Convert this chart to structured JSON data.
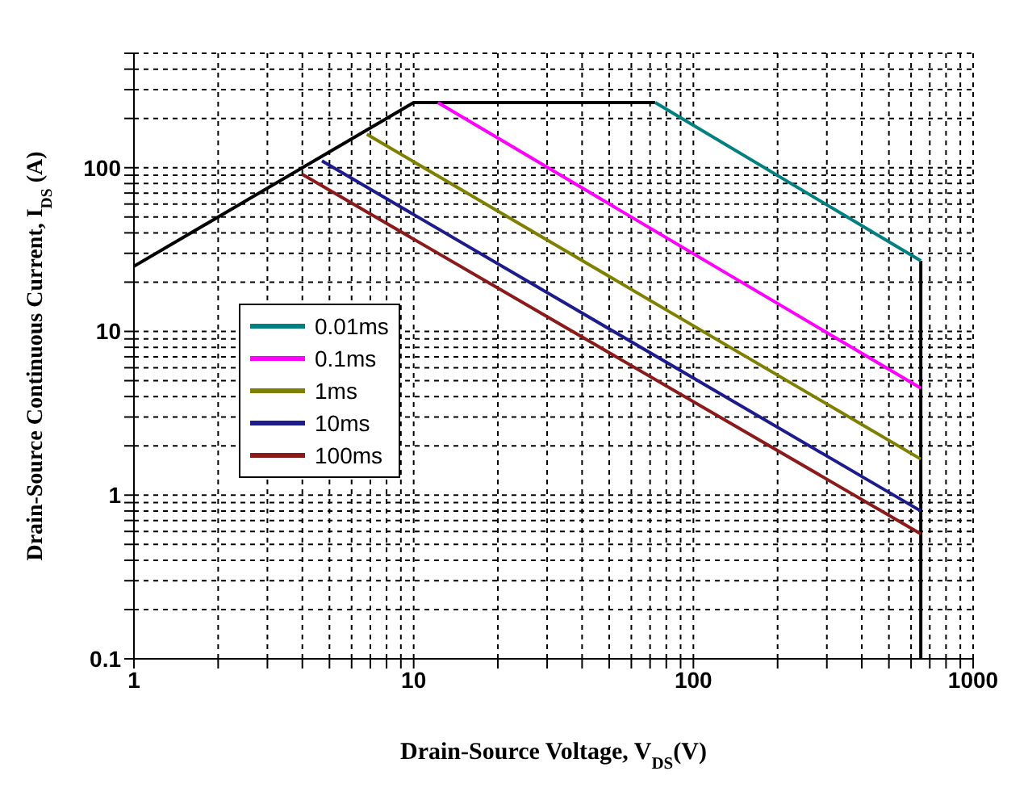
{
  "chart_data": {
    "type": "line",
    "xlabel": "Drain-Source Voltage, V$_{DS}$(V)",
    "ylabel": "Drain-Source Continuous Current, I$_{DS}$ (A)",
    "log": "xy",
    "grid": true,
    "legend": "left",
    "marker": "none",
    "line_style": "solid",
    "xlim": [
      1,
      1000
    ],
    "ylim": [
      0.1,
      500
    ],
    "xticks": [
      1,
      {
        "value": 2,
        "label": null
      },
      {
        "value": 3,
        "label": null
      },
      {
        "value": 4,
        "label": null
      },
      {
        "value": 5,
        "label": null
      },
      {
        "value": 6,
        "label": null
      },
      {
        "value": 7,
        "label": null
      },
      {
        "value": 8,
        "label": null
      },
      {
        "value": 9,
        "label": null
      },
      10,
      {
        "value": 20,
        "label": null
      },
      {
        "value": 30,
        "label": null
      },
      {
        "value": 40,
        "label": null
      },
      {
        "value": 50,
        "label": null
      },
      {
        "value": 60,
        "label": null
      },
      {
        "value": 70,
        "label": null
      },
      {
        "value": 80,
        "label": null
      },
      {
        "value": 90,
        "label": null
      },
      100,
      {
        "value": 200,
        "label": null
      },
      {
        "value": 300,
        "label": null
      },
      {
        "value": 400,
        "label": null
      },
      {
        "value": 500,
        "label": null
      },
      {
        "value": 600,
        "label": null
      },
      {
        "value": 700,
        "label": null
      },
      {
        "value": 800,
        "label": null
      },
      {
        "value": 900,
        "label": null
      },
      1000
    ],
    "yticks": [
      0.1,
      {
        "value": 0.2,
        "label": null
      },
      {
        "value": 0.3,
        "label": null
      },
      {
        "value": 0.4,
        "label": null
      },
      {
        "value": 0.5,
        "label": null
      },
      {
        "value": 0.6,
        "label": null
      },
      {
        "value": 0.7,
        "label": null
      },
      {
        "value": 0.8,
        "label": null
      },
      {
        "value": 0.9,
        "label": null
      },
      1,
      {
        "value": 2,
        "label": null
      },
      {
        "value": 3,
        "label": null
      },
      {
        "value": 4,
        "label": null
      },
      {
        "value": 5,
        "label": null
      },
      {
        "value": 6,
        "label": null
      },
      {
        "value": 7,
        "label": null
      },
      {
        "value": 8,
        "label": null
      },
      {
        "value": 9,
        "label": null
      },
      10,
      {
        "value": 20,
        "label": null
      },
      {
        "value": 30,
        "label": null
      },
      {
        "value": 40,
        "label": null
      },
      {
        "value": 50,
        "label": null
      },
      {
        "value": 60,
        "label": null
      },
      {
        "value": 70,
        "label": null
      },
      {
        "value": 80,
        "label": null
      },
      {
        "value": 90,
        "label": null
      },
      100,
      {
        "value": 200,
        "label": null
      },
      {
        "value": 300,
        "label": null
      },
      {
        "value": 400,
        "label": null
      },
      {
        "value": 500,
        "label": null
      }
    ],
    "series": [
      {
        "color": "#000000",
        "x": [
          1,
          10,
          73
        ],
        "values": [
          25,
          250,
          250
        ]
      },
      {
        "color": "#000000",
        "x": [
          650,
          650
        ],
        "values": [
          27,
          0.1
        ]
      },
      {
        "name": "0.01ms",
        "color": "#008080",
        "x": [
          73,
          650
        ],
        "values": [
          250,
          27
        ]
      },
      {
        "name": "0.1ms",
        "color": "#ff00ff",
        "x": [
          12.2,
          650
        ],
        "values": [
          250,
          4.5
        ]
      },
      {
        "name": "1ms",
        "color": "#808000",
        "x": [
          6.8,
          650
        ],
        "values": [
          160,
          1.66
        ]
      },
      {
        "name": "10ms",
        "color": "#1c1c8c",
        "x": [
          4.7,
          650
        ],
        "values": [
          110,
          0.8
        ]
      },
      {
        "name": "100ms",
        "color": "#8b1a1a",
        "x": [
          4,
          650
        ],
        "values": [
          91,
          0.58
        ]
      }
    ]
  }
}
